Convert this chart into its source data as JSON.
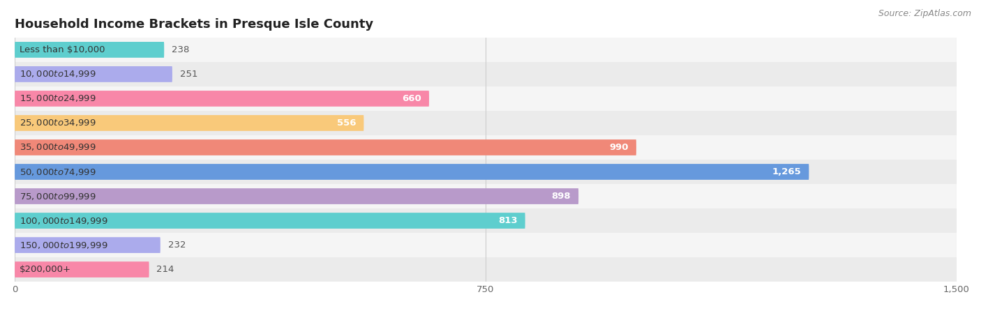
{
  "title": "Household Income Brackets in Presque Isle County",
  "source": "Source: ZipAtlas.com",
  "categories": [
    "Less than $10,000",
    "$10,000 to $14,999",
    "$15,000 to $24,999",
    "$25,000 to $34,999",
    "$35,000 to $49,999",
    "$50,000 to $74,999",
    "$75,000 to $99,999",
    "$100,000 to $149,999",
    "$150,000 to $199,999",
    "$200,000+"
  ],
  "values": [
    238,
    251,
    660,
    556,
    990,
    1265,
    898,
    813,
    232,
    214
  ],
  "bar_colors": [
    "#5ECECE",
    "#ABABEC",
    "#F887A8",
    "#F9C97A",
    "#F08878",
    "#6699DD",
    "#B89ACA",
    "#5ECECE",
    "#ABABEC",
    "#F887A8"
  ],
  "xlim": [
    0,
    1500
  ],
  "xticks": [
    0,
    750,
    1500
  ],
  "title_fontsize": 13,
  "label_fontsize": 9.5,
  "value_fontsize": 9.5,
  "background_color": "#FFFFFF",
  "bar_height": 0.65,
  "row_bg_even": "#F5F5F5",
  "row_bg_odd": "#EBEBEB"
}
